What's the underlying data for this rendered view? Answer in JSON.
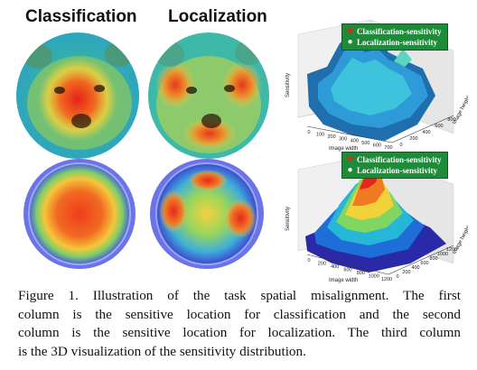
{
  "figure": {
    "column_titles": [
      "Classification",
      "Localization"
    ],
    "plots": [
      {
        "legend": [
          "Classification-sensitivity",
          "Localization-sensitivity"
        ],
        "x_axis_title": "Image width",
        "y_axis_title": "Image height",
        "z_axis_title": "Sensitivity",
        "x_ticks": [
          "0",
          "100",
          "200",
          "300",
          "400",
          "500",
          "600",
          "700"
        ],
        "y_ticks": [
          "0",
          "200",
          "400",
          "600",
          "800"
        ],
        "legend_colors": {
          "classification": "#e0261c",
          "localization": "#2a5cd6"
        }
      },
      {
        "legend": [
          "Classification-sensitivity",
          "Localization-sensitivity"
        ],
        "x_axis_title": "Image width",
        "y_axis_title": "Image height",
        "z_axis_title": "Sensitivity",
        "x_ticks": [
          "0",
          "200",
          "400",
          "600",
          "800",
          "1000",
          "1200"
        ],
        "y_ticks": [
          "0",
          "200",
          "400",
          "600",
          "800",
          "1000",
          "1200"
        ],
        "legend_colors": {
          "classification": "#e0261c",
          "localization": "#2a5cd6"
        }
      }
    ]
  },
  "caption": {
    "lines": [
      "Figure 1. Illustration of the task spatial misalignment. The first",
      "column is the sensitive location for classification and the second",
      "column is the sensitive location for localization. The third column",
      "is the 3D visualization of the sensitivity distribution."
    ]
  }
}
